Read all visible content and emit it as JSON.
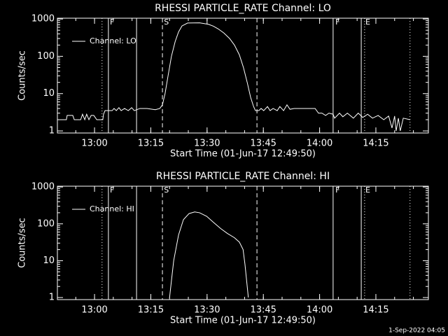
{
  "chart_data": [
    {
      "type": "line",
      "title": "RHESSI PARTICLE_RATE Channel: LO",
      "xlabel": "Start Time (01-Jun-17 12:49:50)",
      "ylabel": "Counts/sec",
      "log_y": true,
      "legend": "top-left",
      "xlim": [
        770.1,
        869.0
      ],
      "xticks": [
        {
          "value": 780,
          "label": "13:00"
        },
        {
          "value": 795,
          "label": "13:15"
        },
        {
          "value": 810,
          "label": "13:30"
        },
        {
          "value": 825,
          "label": "13:45"
        },
        {
          "value": 840,
          "label": "14:00"
        },
        {
          "value": 855,
          "label": "14:15"
        }
      ],
      "ylim": [
        0.88,
        1050
      ],
      "yticks": [
        1,
        10,
        100,
        1000
      ],
      "vlines": [
        {
          "x": 782.0,
          "style": "dotted"
        },
        {
          "x": 783.7,
          "style": "solid"
        },
        {
          "x": 791.2,
          "style": "solid"
        },
        {
          "x": 798.1,
          "style": "dashed"
        },
        {
          "x": 823.3,
          "style": "dashed"
        },
        {
          "x": 843.6,
          "style": "solid"
        },
        {
          "x": 851.1,
          "style": "solid"
        },
        {
          "x": 852.0,
          "style": "dotted"
        },
        {
          "x": 864.1,
          "style": "dotted"
        }
      ],
      "flags": [
        {
          "x": 784.1,
          "label": "F"
        },
        {
          "x": 798.5,
          "label": "S"
        },
        {
          "x": 844.2,
          "label": "F"
        },
        {
          "x": 852.2,
          "label": "E"
        }
      ],
      "x": [
        770.5,
        772.5,
        772.7,
        774.2,
        774.6,
        776.3,
        776.8,
        777.4,
        777.9,
        778.5,
        779.1,
        779.8,
        780.6,
        782.2,
        782.4,
        782.8,
        784.7,
        785.2,
        785.8,
        786.5,
        787.1,
        788.0,
        789.0,
        789.9,
        790.6,
        792.1,
        794.0,
        796.2,
        797.4,
        798.1,
        798.8,
        799.6,
        800.5,
        801.5,
        802.4,
        803.3,
        804.8,
        808.0,
        810.4,
        811.7,
        813.0,
        814.5,
        816.0,
        817.3,
        818.6,
        819.7,
        820.7,
        821.6,
        822.4,
        822.9,
        823.8,
        824.4,
        825.1,
        826.1,
        826.8,
        827.6,
        828.7,
        829.4,
        830.4,
        831.3,
        832.1,
        833.2,
        838.8,
        839.7,
        840.6,
        841.6,
        842.5,
        843.6,
        844.0,
        845.3,
        846.2,
        847.4,
        849.0,
        850.3,
        851.5,
        852.8,
        854.1,
        855.6,
        857.1,
        858.4,
        859.3,
        860.0,
        860.4,
        861.0,
        861.5,
        862.3,
        864.1
      ],
      "series": [
        {
          "name": "Channel: LO",
          "color": "#ffffff",
          "values": [
            2,
            2,
            2.6,
            2.6,
            2,
            2,
            2.8,
            2,
            2.8,
            2,
            2.6,
            2.6,
            2,
            2,
            2.8,
            3.5,
            3.5,
            4,
            3.5,
            4.2,
            3.5,
            4,
            3.5,
            4.2,
            3.5,
            4,
            4,
            3.7,
            4,
            5,
            10,
            30,
            100,
            250,
            450,
            650,
            780,
            790,
            720,
            640,
            540,
            420,
            300,
            200,
            110,
            50,
            20,
            8,
            4.5,
            3.5,
            3.5,
            4,
            3.5,
            4.5,
            3.5,
            4,
            3.5,
            4.5,
            3.5,
            5,
            3.8,
            4,
            4,
            3,
            3,
            2.6,
            3,
            2.8,
            2.2,
            3,
            2.4,
            3,
            2.2,
            3,
            2.3,
            2.8,
            2.2,
            2.6,
            2,
            2.5,
            1.2,
            2.5,
            1,
            2.2,
            1,
            2.2,
            2
          ]
        }
      ]
    },
    {
      "type": "line",
      "title": "RHESSI PARTICLE_RATE Channel: HI",
      "xlabel": "Start Time (01-Jun-17 12:49:50)",
      "ylabel": "Counts/sec",
      "log_y": true,
      "legend": "top-left",
      "xlim": [
        770.1,
        869.0
      ],
      "xticks": [
        {
          "value": 780,
          "label": "13:00"
        },
        {
          "value": 795,
          "label": "13:15"
        },
        {
          "value": 810,
          "label": "13:30"
        },
        {
          "value": 825,
          "label": "13:45"
        },
        {
          "value": 840,
          "label": "14:00"
        },
        {
          "value": 855,
          "label": "14:15"
        }
      ],
      "ylim": [
        0.88,
        1050
      ],
      "yticks": [
        1,
        10,
        100,
        1000
      ],
      "vlines": [
        {
          "x": 782.0,
          "style": "dotted"
        },
        {
          "x": 783.7,
          "style": "solid"
        },
        {
          "x": 791.2,
          "style": "solid"
        },
        {
          "x": 798.1,
          "style": "dashed"
        },
        {
          "x": 823.3,
          "style": "dashed"
        },
        {
          "x": 843.6,
          "style": "solid"
        },
        {
          "x": 851.1,
          "style": "solid"
        },
        {
          "x": 852.0,
          "style": "dotted"
        },
        {
          "x": 864.1,
          "style": "dotted"
        }
      ],
      "flags": [
        {
          "x": 784.1,
          "label": "F"
        },
        {
          "x": 798.5,
          "label": "S"
        },
        {
          "x": 844.2,
          "label": "F"
        },
        {
          "x": 852.2,
          "label": "E"
        }
      ],
      "x": [
        800.0,
        801.1,
        802.4,
        803.7,
        805.2,
        806.7,
        808.0,
        809.9,
        811.7,
        813.6,
        815.4,
        817.3,
        818.6,
        819.6,
        820.1,
        820.7,
        821.0
      ],
      "series": [
        {
          "name": "Channel: HI",
          "color": "#ffffff",
          "values": [
            1,
            10,
            50,
            130,
            190,
            210,
            200,
            160,
            110,
            75,
            55,
            42,
            32,
            20,
            8,
            2,
            1
          ]
        }
      ]
    }
  ],
  "footer": "1-Sep-2022 04:05"
}
